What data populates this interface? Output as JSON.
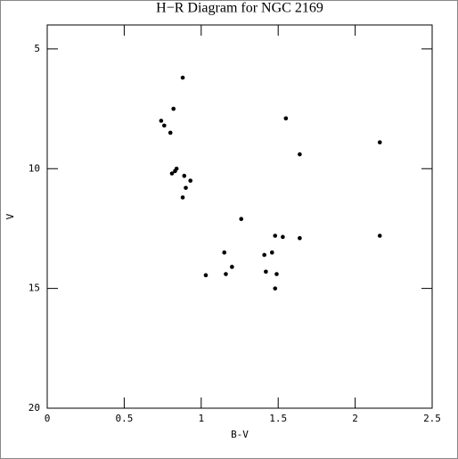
{
  "chart_data": {
    "type": "scatter",
    "title": "H−R Diagram for NGC 2169",
    "x_label": "B-V",
    "y_label": "V",
    "color": "#000000",
    "x": [
      0.88,
      0.82,
      0.74,
      0.76,
      0.8,
      0.84,
      0.83,
      0.81,
      0.89,
      0.93,
      0.9,
      0.88,
      1.55,
      1.64,
      2.16,
      2.16,
      1.26,
      1.48,
      1.53,
      1.64,
      1.15,
      1.41,
      1.46,
      1.2,
      1.42,
      1.16,
      1.49,
      1.03,
      1.48
    ],
    "y": [
      6.2,
      7.5,
      8.0,
      8.2,
      8.5,
      10.0,
      10.1,
      10.2,
      10.3,
      10.5,
      10.8,
      11.2,
      7.9,
      9.4,
      8.9,
      12.8,
      12.1,
      12.8,
      12.85,
      12.9,
      13.5,
      13.6,
      13.5,
      14.1,
      14.3,
      14.4,
      14.4,
      14.45,
      15.0
    ],
    "xlim": [
      0,
      2.5
    ],
    "ylim": [
      20,
      4
    ],
    "xticks": [
      0,
      0.5,
      1,
      1.5,
      2,
      2.5
    ],
    "yticks": [
      5,
      10,
      15,
      20
    ]
  }
}
